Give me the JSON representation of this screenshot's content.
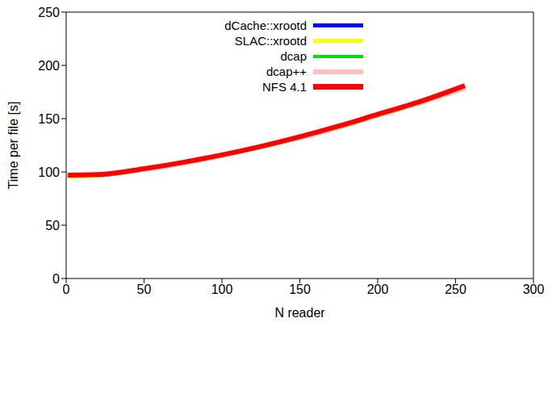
{
  "chart_data": {
    "type": "line",
    "x_label": "N reader",
    "y_label": "Time per file [s]",
    "x": [
      1,
      25,
      50,
      75,
      100,
      125,
      150,
      175,
      200,
      225,
      256
    ],
    "xlim": [
      0,
      300
    ],
    "xticks": [
      0,
      50,
      100,
      150,
      200,
      250,
      300
    ],
    "ylim": [
      0,
      250
    ],
    "yticks": [
      0,
      50,
      100,
      150,
      200,
      250
    ],
    "grid": false,
    "legend": "upper left",
    "series": [
      {
        "name": "dCache::xrootd",
        "color": "#0000ff",
        "values": [
          96,
          97,
          102,
          108,
          115,
          123,
          132,
          142,
          153,
          164,
          180
        ]
      },
      {
        "name": "SLAC::xrootd",
        "color": "#ffff00",
        "values": [
          95,
          97,
          102,
          108,
          115,
          123,
          132,
          142,
          153,
          164,
          180
        ]
      },
      {
        "name": "dcap",
        "color": "#00dd00",
        "values": [
          96,
          97,
          102,
          108,
          115,
          123,
          131,
          141,
          152,
          163,
          178
        ]
      },
      {
        "name": "dcap++",
        "color": "#ffc0c0",
        "values": [
          97,
          98,
          102,
          108,
          115,
          124,
          132,
          142,
          153,
          164,
          178
        ]
      },
      {
        "name": "NFS 4.1",
        "color": "#ff0000",
        "values": [
          97,
          98,
          103,
          109,
          116,
          124,
          133,
          143,
          154,
          165,
          181
        ]
      }
    ]
  }
}
